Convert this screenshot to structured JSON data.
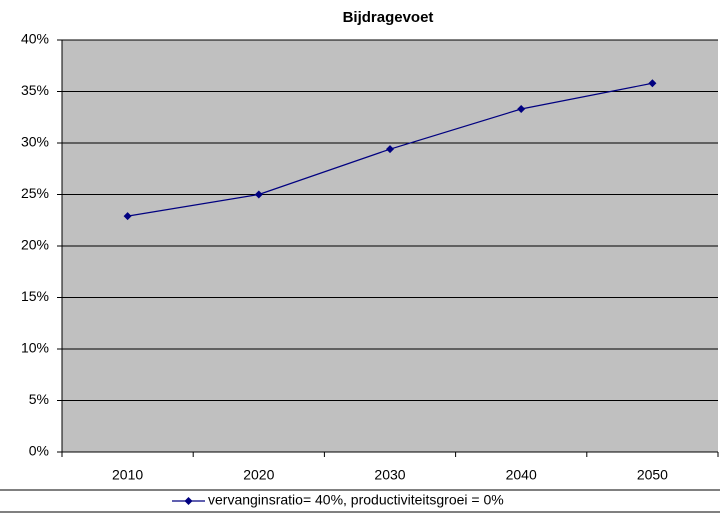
{
  "chart_data": {
    "type": "line",
    "title": "Bijdragevoet",
    "categories": [
      "2010",
      "2020",
      "2030",
      "2040",
      "2050"
    ],
    "series": [
      {
        "name": "vervanginsratio= 40%, productiviteitsgroei = 0%",
        "color": "#000080",
        "values": [
          22.9,
          25.0,
          29.4,
          33.3,
          35.8
        ]
      }
    ],
    "ylim": [
      0,
      40
    ],
    "yticks": [
      {
        "value": 0,
        "label": "0%"
      },
      {
        "value": 5,
        "label": "5%"
      },
      {
        "value": 10,
        "label": "10%"
      },
      {
        "value": 15,
        "label": "15%"
      },
      {
        "value": 20,
        "label": "20%"
      },
      {
        "value": 25,
        "label": "25%"
      },
      {
        "value": 30,
        "label": "30%"
      },
      {
        "value": 35,
        "label": "35%"
      },
      {
        "value": 40,
        "label": "40%"
      }
    ],
    "grid": true,
    "legend": "bottom"
  }
}
